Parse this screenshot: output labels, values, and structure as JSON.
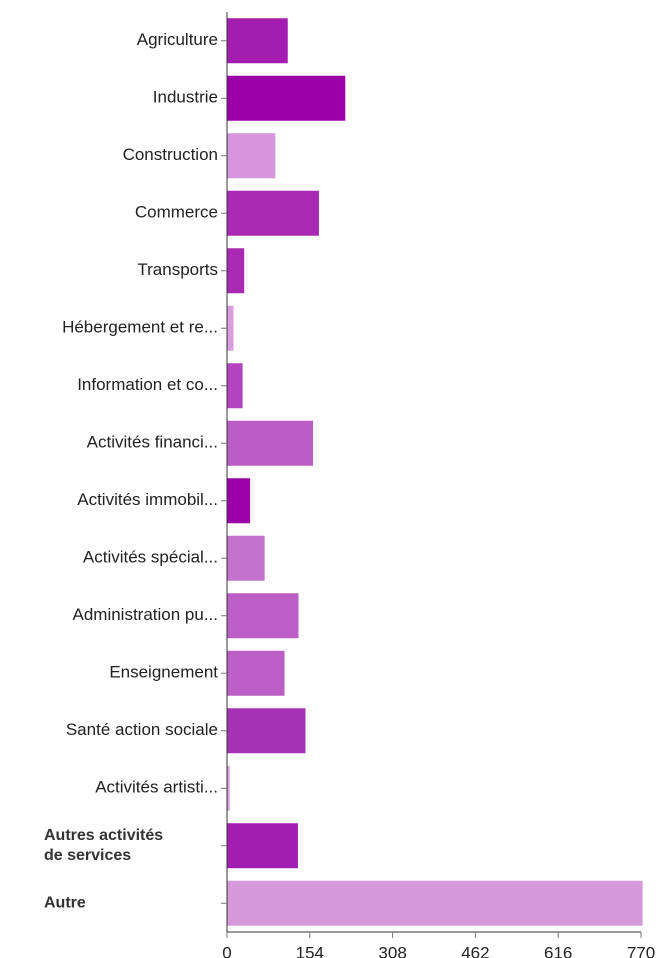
{
  "chart_data": {
    "type": "bar",
    "orientation": "horizontal",
    "title": "",
    "xlabel": "",
    "ylabel": "",
    "categories": [
      "Agriculture",
      "Industrie",
      "Construction",
      "Commerce",
      "Transports",
      "Hébergement et re...",
      "Information et co...",
      "Activités financi...",
      "Activités immobil...",
      "Activités spécial...",
      "Administration pu...",
      "Enseignement",
      "Santé action sociale",
      "Activités artisti...",
      "Autres activités de services",
      "Autre"
    ],
    "category_lines": [
      [
        "Agriculture"
      ],
      [
        "Industrie"
      ],
      [
        "Construction"
      ],
      [
        "Commerce"
      ],
      [
        "Transports"
      ],
      [
        "Hébergement et re..."
      ],
      [
        "Information et co..."
      ],
      [
        "Activités financi..."
      ],
      [
        "Activités immobil..."
      ],
      [
        "Activités spécial..."
      ],
      [
        "Administration pu..."
      ],
      [
        "Enseignement"
      ],
      [
        "Santé action sociale"
      ],
      [
        "Activités artisti..."
      ],
      [
        "Autres activités",
        "de services"
      ],
      [
        "Autre"
      ]
    ],
    "bold_categories": [
      "Autres activités de services",
      "Autre"
    ],
    "values": [
      113,
      220,
      90,
      171,
      32,
      12,
      29,
      160,
      43,
      70,
      133,
      107,
      146,
      5,
      132,
      773
    ],
    "colors": [
      "#a31eb0",
      "#9a00a6",
      "#d594dc",
      "#a829b4",
      "#a829b4",
      "#d99ee0",
      "#b443bf",
      "#b95cc4",
      "#9a00a6",
      "#c473cd",
      "#bb5fc6",
      "#bb5fc6",
      "#a531b3",
      "#d99ee0",
      "#a31eb0",
      "#d69adc"
    ],
    "x_ticks": [
      0,
      154,
      308,
      462,
      616,
      770
    ],
    "xlim": [
      0,
      770
    ],
    "grid": false,
    "legend": "none"
  }
}
